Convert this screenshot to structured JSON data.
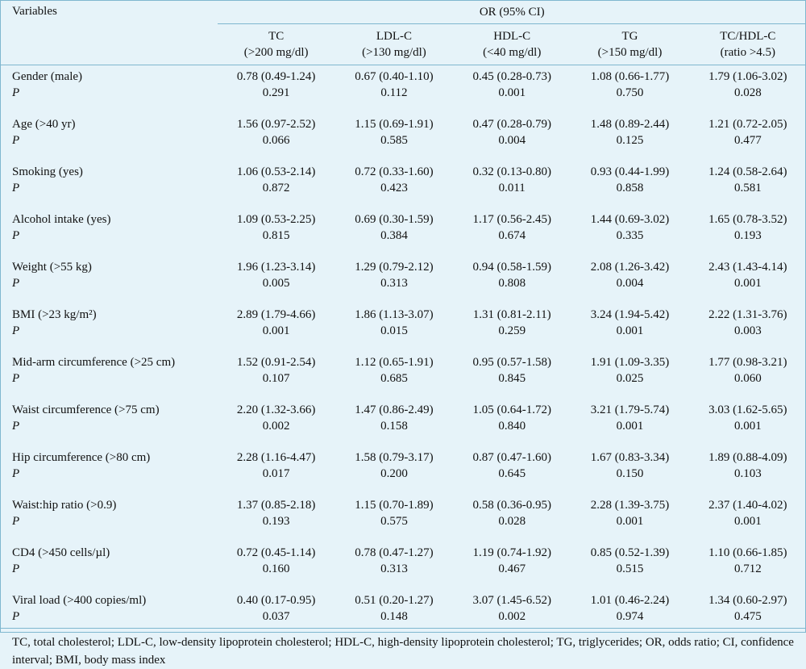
{
  "table": {
    "variables_header": "Variables",
    "group_header": "OR (95% CI)",
    "columns": [
      {
        "line1": "TC",
        "line2": "(>200 mg/dl)"
      },
      {
        "line1": "LDL-C",
        "line2": "(>130 mg/dl)"
      },
      {
        "line1": "HDL-C",
        "line2": "(<40 mg/dl)"
      },
      {
        "line1": "TG",
        "line2": "(>150 mg/dl)"
      },
      {
        "line1": "TC/HDL-C",
        "line2": "(ratio >4.5)"
      }
    ],
    "p_label": "P",
    "rows": [
      {
        "label": "Gender (male)",
        "or": [
          "0.78 (0.49-1.24)",
          "0.67 (0.40-1.10)",
          "0.45 (0.28-0.73)",
          "1.08 (0.66-1.77)",
          "1.79 (1.06-3.02)"
        ],
        "p": [
          "0.291",
          "0.112",
          "0.001",
          "0.750",
          "0.028"
        ]
      },
      {
        "label": "Age (>40 yr)",
        "or": [
          "1.56 (0.97-2.52)",
          "1.15 (0.69-1.91)",
          "0.47 (0.28-0.79)",
          "1.48 (0.89-2.44)",
          "1.21 (0.72-2.05)"
        ],
        "p": [
          "0.066",
          "0.585",
          "0.004",
          "0.125",
          "0.477"
        ]
      },
      {
        "label": "Smoking (yes)",
        "or": [
          "1.06 (0.53-2.14)",
          "0.72 (0.33-1.60)",
          "0.32 (0.13-0.80)",
          "0.93 (0.44-1.99)",
          "1.24 (0.58-2.64)"
        ],
        "p": [
          "0.872",
          "0.423",
          "0.011",
          "0.858",
          "0.581"
        ]
      },
      {
        "label": "Alcohol intake (yes)",
        "or": [
          "1.09 (0.53-2.25)",
          "0.69 (0.30-1.59)",
          "1.17 (0.56-2.45)",
          "1.44 (0.69-3.02)",
          "1.65 (0.78-3.52)"
        ],
        "p": [
          "0.815",
          "0.384",
          "0.674",
          "0.335",
          "0.193"
        ]
      },
      {
        "label": "Weight (>55 kg)",
        "or": [
          "1.96 (1.23-3.14)",
          "1.29 (0.79-2.12)",
          "0.94 (0.58-1.59)",
          "2.08 (1.26-3.42)",
          "2.43 (1.43-4.14)"
        ],
        "p": [
          "0.005",
          "0.313",
          "0.808",
          "0.004",
          "0.001"
        ]
      },
      {
        "label": "BMI (>23 kg/m²)",
        "or": [
          "2.89 (1.79-4.66)",
          "1.86 (1.13-3.07)",
          "1.31 (0.81-2.11)",
          "3.24 (1.94-5.42)",
          "2.22 (1.31-3.76)"
        ],
        "p": [
          "0.001",
          "0.015",
          "0.259",
          "0.001",
          "0.003"
        ]
      },
      {
        "label": "Mid-arm circumference (>25 cm)",
        "or": [
          "1.52 (0.91-2.54)",
          "1.12 (0.65-1.91)",
          "0.95 (0.57-1.58)",
          "1.91 (1.09-3.35)",
          "1.77 (0.98-3.21)"
        ],
        "p": [
          "0.107",
          "0.685",
          "0.845",
          "0.025",
          "0.060"
        ]
      },
      {
        "label": "Waist circumference (>75 cm)",
        "or": [
          "2.20 (1.32-3.66)",
          "1.47 (0.86-2.49)",
          "1.05 (0.64-1.72)",
          "3.21 (1.79-5.74)",
          "3.03 (1.62-5.65)"
        ],
        "p": [
          "0.002",
          "0.158",
          "0.840",
          "0.001",
          "0.001"
        ]
      },
      {
        "label": "Hip circumference (>80 cm)",
        "or": [
          "2.28 (1.16-4.47)",
          "1.58 (0.79-3.17)",
          "0.87 (0.47-1.60)",
          "1.67 (0.83-3.34)",
          "1.89 (0.88-4.09)"
        ],
        "p": [
          "0.017",
          "0.200",
          "0.645",
          "0.150",
          "0.103"
        ]
      },
      {
        "label": "Waist:hip ratio (>0.9)",
        "or": [
          "1.37 (0.85-2.18)",
          "1.15 (0.70-1.89)",
          "0.58 (0.36-0.95)",
          "2.28 (1.39-3.75)",
          "2.37 (1.40-4.02)"
        ],
        "p": [
          "0.193",
          "0.575",
          "0.028",
          "0.001",
          "0.001"
        ]
      },
      {
        "label": "CD4 (>450 cells/µl)",
        "or": [
          "0.72 (0.45-1.14)",
          "0.78 (0.47-1.27)",
          "1.19 (0.74-1.92)",
          "0.85 (0.52-1.39)",
          "1.10 (0.66-1.85)"
        ],
        "p": [
          "0.160",
          "0.313",
          "0.467",
          "0.515",
          "0.712"
        ]
      },
      {
        "label": "Viral load (>400 copies/ml)",
        "or": [
          "0.40 (0.17-0.95)",
          "0.51 (0.20-1.27)",
          "3.07 (1.45-6.52)",
          "1.01 (0.46-2.24)",
          "1.34 (0.60-2.97)"
        ],
        "p": [
          "0.037",
          "0.148",
          "0.002",
          "0.974",
          "0.475"
        ]
      }
    ]
  },
  "footnote": "TC, total cholesterol; LDL-C, low-density lipoprotein cholesterol; HDL-C, high-density lipoprotein cholesterol; TG, triglycerides; OR, odds ratio; CI, confidence interval; BMI, body mass index"
}
